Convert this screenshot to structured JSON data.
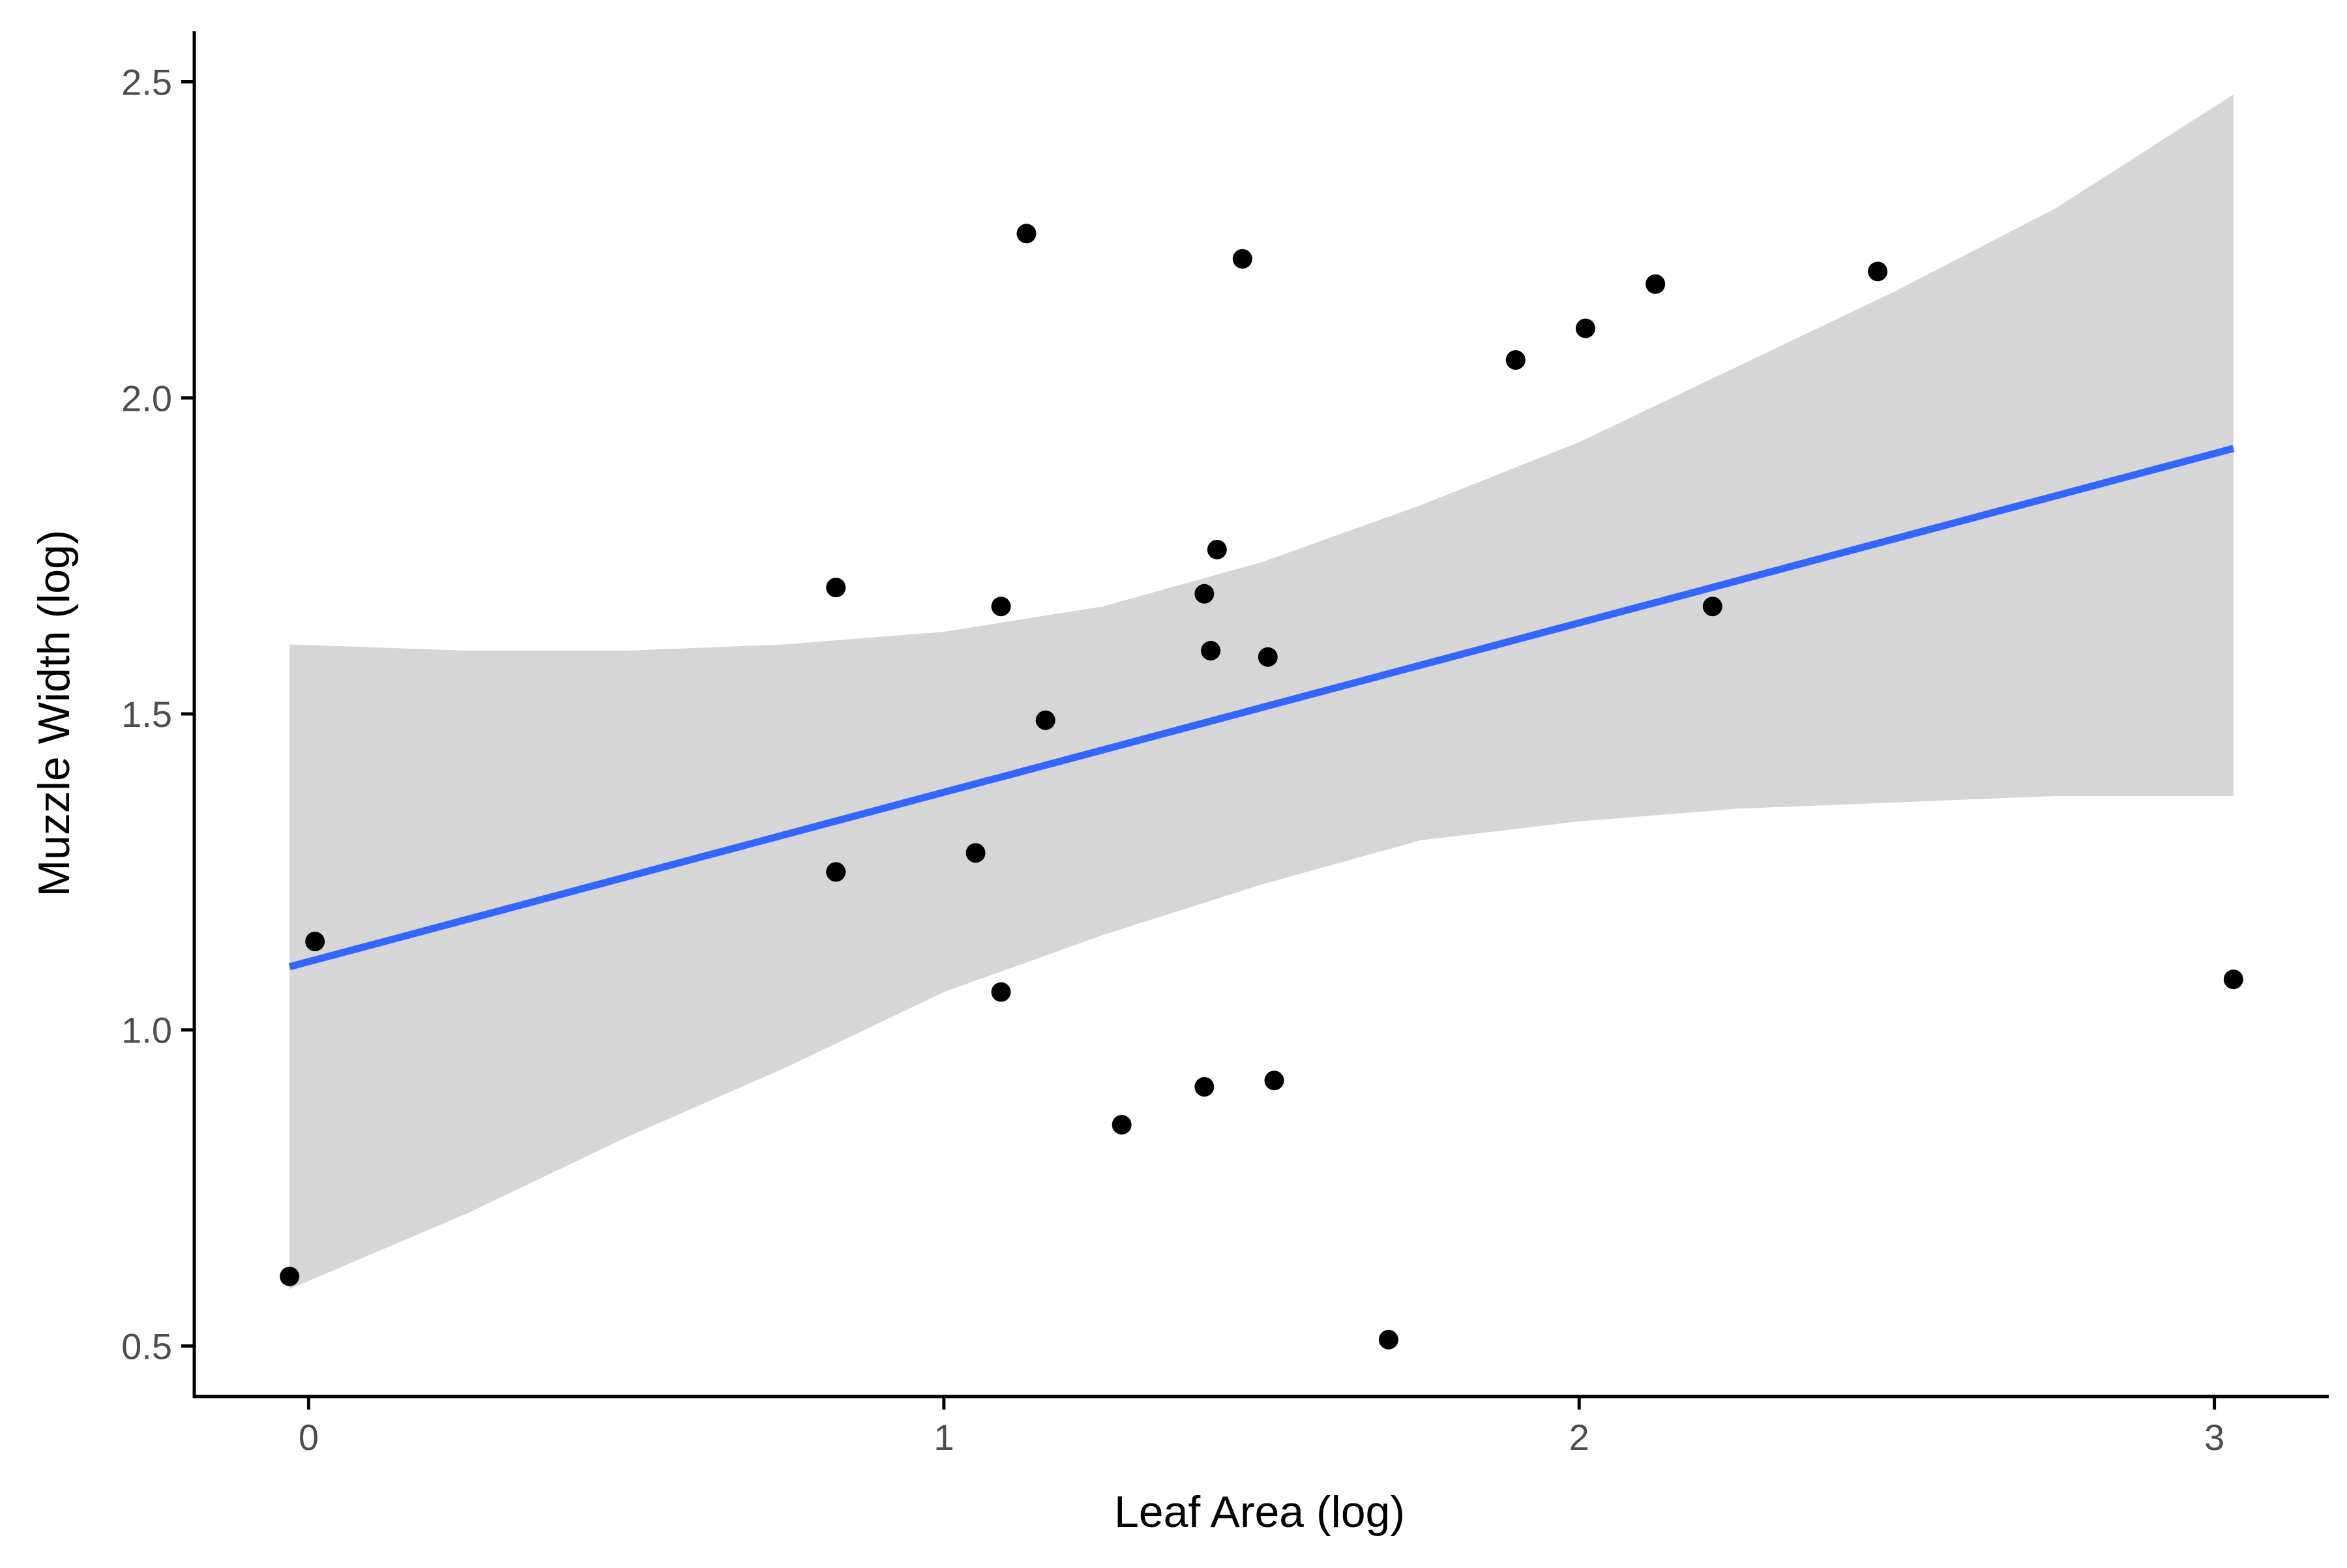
{
  "chart_data": {
    "type": "scatter",
    "title": "",
    "xlabel": "Leaf Area (log)",
    "ylabel": "Muzzle Width (log)",
    "xlim": [
      -0.18,
      3.18
    ],
    "ylim": [
      0.42,
      2.58
    ],
    "x_ticks": [
      0,
      1,
      2,
      3
    ],
    "y_ticks": [
      0.5,
      1.0,
      1.5,
      2.0,
      2.5
    ],
    "x_tick_labels": [
      "0",
      "1",
      "2",
      "3"
    ],
    "y_tick_labels": [
      "0.5",
      "1.0",
      "1.5",
      "2.0",
      "2.5"
    ],
    "grid": false,
    "legend": "none",
    "points": [
      {
        "x": -0.03,
        "y": 0.61
      },
      {
        "x": 0.01,
        "y": 1.14
      },
      {
        "x": 0.83,
        "y": 1.7
      },
      {
        "x": 0.83,
        "y": 1.25
      },
      {
        "x": 1.05,
        "y": 1.28
      },
      {
        "x": 1.09,
        "y": 1.67
      },
      {
        "x": 1.09,
        "y": 1.06
      },
      {
        "x": 1.13,
        "y": 2.26
      },
      {
        "x": 1.16,
        "y": 1.49
      },
      {
        "x": 1.28,
        "y": 0.85
      },
      {
        "x": 1.41,
        "y": 1.69
      },
      {
        "x": 1.41,
        "y": 0.91
      },
      {
        "x": 1.42,
        "y": 1.6
      },
      {
        "x": 1.43,
        "y": 1.76
      },
      {
        "x": 1.47,
        "y": 2.22
      },
      {
        "x": 1.51,
        "y": 1.59
      },
      {
        "x": 1.52,
        "y": 0.92
      },
      {
        "x": 1.7,
        "y": 0.51
      },
      {
        "x": 1.9,
        "y": 2.06
      },
      {
        "x": 2.01,
        "y": 2.11
      },
      {
        "x": 2.12,
        "y": 2.18
      },
      {
        "x": 2.21,
        "y": 1.67
      },
      {
        "x": 2.47,
        "y": 2.2
      },
      {
        "x": 3.03,
        "y": 1.08
      }
    ],
    "fit": {
      "method": "linear",
      "x_range": [
        -0.03,
        3.03
      ],
      "y_at_range": [
        1.1,
        1.92
      ],
      "confidence_band": [
        {
          "x": -0.03,
          "lower": 0.59,
          "upper": 1.61
        },
        {
          "x": 0.25,
          "lower": 0.71,
          "upper": 1.6
        },
        {
          "x": 0.5,
          "lower": 0.83,
          "upper": 1.6
        },
        {
          "x": 0.75,
          "lower": 0.94,
          "upper": 1.61
        },
        {
          "x": 1.0,
          "lower": 1.06,
          "upper": 1.63
        },
        {
          "x": 1.25,
          "lower": 1.15,
          "upper": 1.67
        },
        {
          "x": 1.5,
          "lower": 1.23,
          "upper": 1.74
        },
        {
          "x": 1.75,
          "lower": 1.3,
          "upper": 1.83
        },
        {
          "x": 2.0,
          "lower": 1.33,
          "upper": 1.93
        },
        {
          "x": 2.25,
          "lower": 1.35,
          "upper": 2.05
        },
        {
          "x": 2.5,
          "lower": 1.36,
          "upper": 2.17
        },
        {
          "x": 2.75,
          "lower": 1.37,
          "upper": 2.3
        },
        {
          "x": 3.03,
          "lower": 1.37,
          "upper": 2.48
        }
      ]
    },
    "colors": {
      "points": "#000000",
      "fit_line": "#3366FF",
      "band": "#D6D6D6",
      "axis": "#000000",
      "tick_label": "#4D4D4D"
    }
  }
}
